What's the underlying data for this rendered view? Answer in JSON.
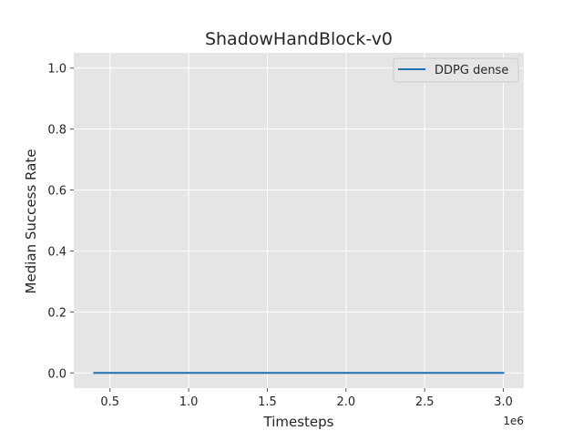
{
  "chart_data": {
    "type": "line",
    "title": "ShadowHandBlock-v0",
    "xlabel": "Timesteps",
    "ylabel": "Median Success Rate",
    "x_offset_label": "1e6",
    "xlim": [
      0.27,
      3.13
    ],
    "ylim": [
      -0.05,
      1.05
    ],
    "x_ticks": [
      0.5,
      1.0,
      1.5,
      2.0,
      2.5,
      3.0
    ],
    "x_tick_labels": [
      "0.5",
      "1.0",
      "1.5",
      "2.0",
      "2.5",
      "3.0"
    ],
    "y_ticks": [
      0.0,
      0.2,
      0.4,
      0.6,
      0.8,
      1.0
    ],
    "y_tick_labels": [
      "0.0",
      "0.2",
      "0.4",
      "0.6",
      "0.8",
      "1.0"
    ],
    "grid": true,
    "legend_position": "top-right",
    "series": [
      {
        "name": "DDPG dense",
        "color": "#1f6fb4",
        "x": [
          0.4,
          0.6,
          0.8,
          1.0,
          1.2,
          1.4,
          1.6,
          1.8,
          2.0,
          2.2,
          2.4,
          2.6,
          2.8,
          3.0
        ],
        "y": [
          0,
          0,
          0,
          0,
          0,
          0,
          0,
          0,
          0,
          0,
          0,
          0,
          0,
          0
        ]
      }
    ]
  }
}
